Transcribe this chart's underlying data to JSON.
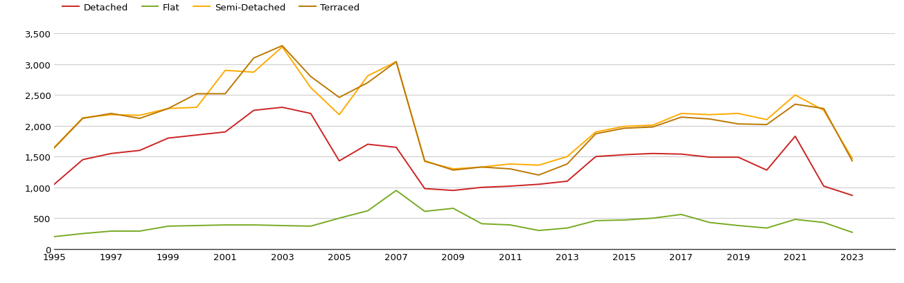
{
  "years": [
    1995,
    1996,
    1997,
    1998,
    1999,
    2000,
    2001,
    2002,
    2003,
    2004,
    2005,
    2006,
    2007,
    2008,
    2009,
    2010,
    2011,
    2012,
    2013,
    2014,
    2015,
    2016,
    2017,
    2018,
    2019,
    2020,
    2021,
    2022,
    2023,
    2024
  ],
  "detached": [
    1050,
    1450,
    1550,
    1600,
    1800,
    1850,
    1900,
    2250,
    2300,
    2200,
    1430,
    1700,
    1650,
    980,
    950,
    1000,
    1020,
    1050,
    1100,
    1500,
    1530,
    1550,
    1540,
    1490,
    1490,
    1280,
    1830,
    1020,
    870,
    null
  ],
  "flat": [
    200,
    250,
    290,
    290,
    370,
    380,
    390,
    390,
    380,
    370,
    500,
    620,
    950,
    610,
    660,
    410,
    390,
    300,
    340,
    460,
    470,
    500,
    560,
    430,
    380,
    340,
    480,
    430,
    270,
    null
  ],
  "semi_detached": [
    1650,
    2130,
    2180,
    2170,
    2280,
    2300,
    2900,
    2870,
    3280,
    2620,
    2180,
    2810,
    3040,
    1420,
    1300,
    1330,
    1380,
    1360,
    1500,
    1900,
    1990,
    2010,
    2200,
    2180,
    2200,
    2100,
    2500,
    2250,
    1470,
    null
  ],
  "terraced": [
    1640,
    2120,
    2200,
    2120,
    2280,
    2520,
    2520,
    3100,
    3300,
    2800,
    2460,
    2700,
    3040,
    1430,
    1280,
    1330,
    1300,
    1200,
    1380,
    1870,
    1960,
    1980,
    2140,
    2110,
    2030,
    2020,
    2350,
    2280,
    1430,
    null
  ],
  "colors": {
    "detached": "#cc2222",
    "flat": "#77aa22",
    "semi_detached": "#ffaa00",
    "terraced": "#bb7700"
  },
  "ylim": [
    0,
    3500
  ],
  "yticks": [
    0,
    500,
    1000,
    1500,
    2000,
    2500,
    3000,
    3500
  ],
  "xticks": [
    1995,
    1997,
    1999,
    2001,
    2003,
    2005,
    2007,
    2009,
    2011,
    2013,
    2015,
    2017,
    2019,
    2021,
    2023
  ],
  "xlim_left": 1995,
  "xlim_right": 2024.5,
  "background_color": "#ffffff",
  "grid_color": "#cccccc",
  "linewidth": 1.4
}
